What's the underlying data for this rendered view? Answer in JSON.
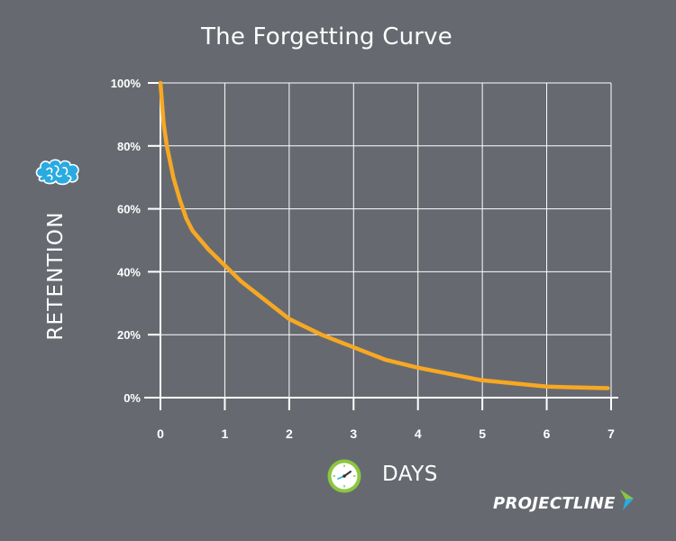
{
  "colors": {
    "background": "#666a70",
    "grid": "#ffffff",
    "curve": "#f7a823",
    "logo_green": "#8cc63f",
    "logo_blue": "#29abe2"
  },
  "logo": {
    "text": "PROJECTLINE"
  },
  "icons": {
    "retention_icon": "brain-icon",
    "days_icon": "clock-icon"
  },
  "chart_data": {
    "type": "line",
    "title": "The Forgetting Curve",
    "xlabel": "DAYS",
    "ylabel": "RETENTION",
    "xlim": [
      0,
      7
    ],
    "ylim": [
      0,
      100
    ],
    "x_ticks": [
      "0",
      "1",
      "2",
      "3",
      "4",
      "5",
      "6",
      "7"
    ],
    "y_ticks": [
      "0%",
      "20%",
      "40%",
      "60%",
      "80%",
      "100%"
    ],
    "grid": true,
    "series": [
      {
        "x": [
          0,
          0.05,
          0.1,
          0.2,
          0.3,
          0.4,
          0.5,
          0.75,
          1,
          1.25,
          1.5,
          2,
          2.5,
          3,
          3.5,
          4,
          4.5,
          5,
          5.5,
          6,
          6.5,
          6.95
        ],
        "y": [
          100,
          87,
          80,
          70,
          63,
          57,
          53,
          47,
          42,
          37,
          33,
          25,
          20,
          16,
          12,
          9.5,
          7.5,
          5.5,
          4.5,
          3.5,
          3.2,
          3
        ]
      }
    ]
  }
}
